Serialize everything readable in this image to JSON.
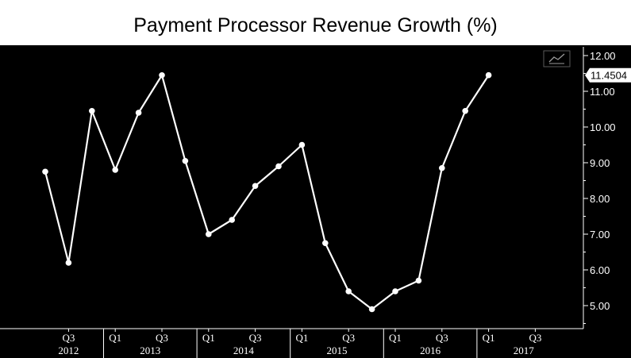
{
  "chart_data": {
    "type": "line",
    "title": "Payment Processor Revenue Growth (%)",
    "xlabel": "",
    "ylabel": "",
    "ylim": [
      4.3,
      12.1
    ],
    "yticks": [
      12.0,
      11.0,
      10.0,
      9.0,
      8.0,
      7.0,
      6.0,
      5.0
    ],
    "ytick_labels": [
      "12.00",
      "11.00",
      "10.00",
      "9.00",
      "8.00",
      "7.00",
      "6.00",
      "5.00"
    ],
    "x_quarters": [
      "Q2 2012",
      "Q3 2012",
      "Q4 2012",
      "Q1 2013",
      "Q2 2013",
      "Q3 2013",
      "Q4 2013",
      "Q1 2014",
      "Q2 2014",
      "Q3 2014",
      "Q4 2014",
      "Q1 2015",
      "Q2 2015",
      "Q3 2015",
      "Q4 2015",
      "Q1 2016",
      "Q2 2016",
      "Q3 2016",
      "Q4 2016",
      "Q1 2017"
    ],
    "series": [
      {
        "values": [
          8.75,
          6.2,
          10.45,
          8.8,
          10.4,
          11.45,
          9.05,
          7.0,
          7.4,
          8.35,
          8.9,
          9.5,
          6.75,
          5.4,
          4.9,
          5.4,
          5.7,
          8.85,
          10.45,
          11.4504
        ]
      }
    ],
    "last_value_label": "11.4504",
    "quarter_tick_labels": [
      {
        "label": "Q3",
        "quarter_index": 1
      },
      {
        "label": "Q1",
        "quarter_index": 3
      },
      {
        "label": "Q3",
        "quarter_index": 5
      },
      {
        "label": "Q1",
        "quarter_index": 7
      },
      {
        "label": "Q3",
        "quarter_index": 9
      },
      {
        "label": "Q1",
        "quarter_index": 11
      },
      {
        "label": "Q3",
        "quarter_index": 13
      },
      {
        "label": "Q1",
        "quarter_index": 15
      },
      {
        "label": "Q3",
        "quarter_index": 17
      },
      {
        "label": "Q1",
        "quarter_index": 19
      },
      {
        "label": "Q3",
        "quarter_index": 21
      }
    ],
    "year_labels": [
      {
        "label": "2012",
        "center_quarter": 1
      },
      {
        "label": "2013",
        "center_quarter": 4.5
      },
      {
        "label": "2014",
        "center_quarter": 8.5
      },
      {
        "label": "2015",
        "center_quarter": 12.5
      },
      {
        "label": "2016",
        "center_quarter": 16.5
      },
      {
        "label": "2017",
        "center_quarter": 20.5
      }
    ],
    "year_boundaries": [
      2.5,
      6.5,
      10.5,
      14.5,
      18.5
    ],
    "grid": false,
    "colors": {
      "background": "#000000",
      "line": "#ffffff",
      "axis": "#ffffff",
      "text": "#ffffff",
      "title_text": "#000000"
    },
    "toolbar_icon": "line-chart-icon"
  }
}
